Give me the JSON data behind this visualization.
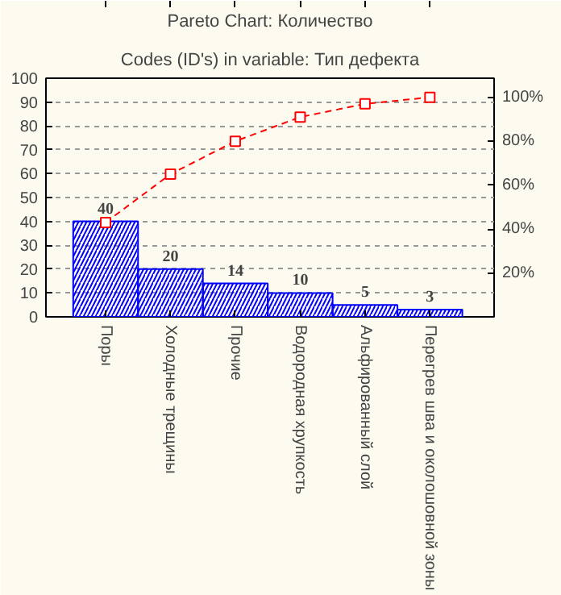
{
  "chart_data": {
    "type": "bar",
    "title": "Pareto Chart: Количество",
    "subtitle": "Codes (ID's) in variable: Тип дефекта",
    "categories": [
      "Поры",
      "Холодные трещины",
      "Прочие",
      "Водородная хрупкость",
      "Альфированный слой",
      "Перегрев шва и околошовной зоны"
    ],
    "series": [
      {
        "color": "#0000ff",
        "values": [
          40,
          20,
          14,
          10,
          5,
          3
        ],
        "value_labels": [
          "40",
          "20",
          "14",
          "10",
          "5",
          "3"
        ]
      },
      {
        "type": "line",
        "axis": "y2",
        "color": "#ff0000",
        "values": [
          43,
          65,
          80,
          91,
          97,
          100
        ]
      }
    ],
    "ylim": [
      0,
      100
    ],
    "yticks": [
      0,
      10,
      20,
      30,
      40,
      50,
      60,
      70,
      80,
      90,
      100
    ],
    "y2lim": [
      0,
      108.7
    ],
    "y2ticks": [
      {
        "value": 20,
        "label": "20%"
      },
      {
        "value": 40,
        "label": "40%"
      },
      {
        "value": 60,
        "label": "60%"
      },
      {
        "value": 80,
        "label": "80%"
      },
      {
        "value": 100,
        "label": "100%"
      }
    ],
    "grid": "y",
    "marker": "square",
    "line_style": "dashed"
  }
}
